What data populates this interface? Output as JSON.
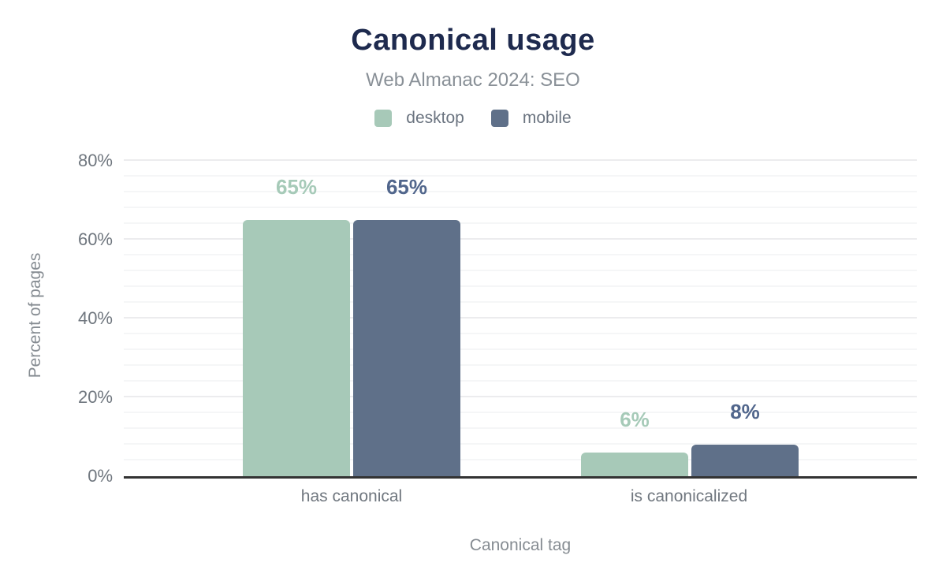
{
  "chart_data": {
    "type": "bar",
    "title": "Canonical usage",
    "subtitle": "Web Almanac 2024: SEO",
    "categories": [
      "has canonical",
      "is canonicalized"
    ],
    "series": [
      {
        "name": "desktop",
        "color": "#a7c9b8",
        "label_color": "#a6cab8",
        "values": [
          65,
          6
        ],
        "labels": [
          "65%",
          "6%"
        ]
      },
      {
        "name": "mobile",
        "color": "#5f7089",
        "label_color": "#51668c",
        "values": [
          65,
          8
        ],
        "labels": [
          "65%",
          "8%"
        ]
      }
    ],
    "xlabel": "Canonical tag",
    "ylabel": "Percent of pages",
    "ylim": [
      0,
      80
    ],
    "ytick_values": [
      0,
      20,
      40,
      60,
      80
    ],
    "ytick_labels": [
      "0%",
      "20%",
      "40%",
      "60%",
      "80%"
    ],
    "minor_grid_step": 4,
    "major_grid_step": 20,
    "legend_position": "top",
    "grid": true
  },
  "colors": {
    "title": "#1e2a4e",
    "subtitle": "#899097",
    "axis_text": "#70777f",
    "axis_title_text": "#868c92",
    "axis_line": "#333333",
    "grid_major": "#ececee",
    "grid_minor": "#f5f6f7",
    "background": "#ffffff"
  }
}
